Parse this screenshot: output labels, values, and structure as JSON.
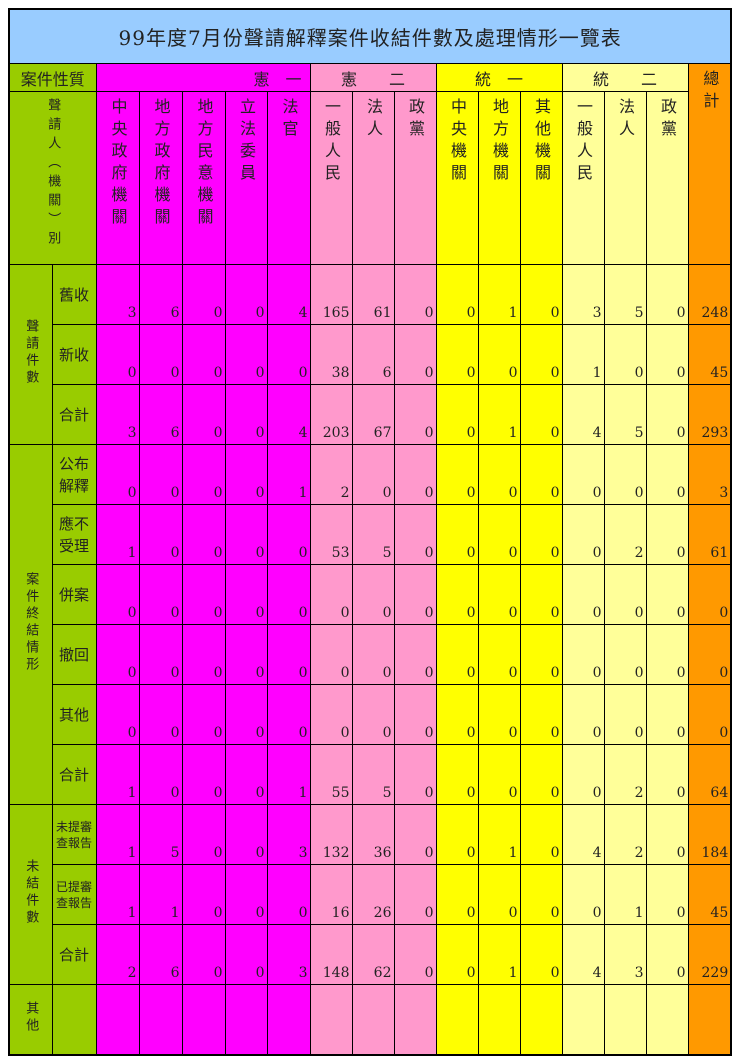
{
  "title": "99年度7月份聲請解釋案件收結件數及處理情形一覽表",
  "header": {
    "case_nature": "案件性質",
    "groups": [
      "憲　一",
      "憲　　二",
      "統　一",
      "統　　二"
    ],
    "total": "總計",
    "applicant": "聲請人（機關）別",
    "columns": [
      "中央政府機關",
      "地方政府機關",
      "地方民意機關",
      "立法委員",
      "法官",
      "一般人民",
      "法人",
      "政黨",
      "中央機關",
      "地方機關",
      "其他機關",
      "一般人民",
      "法人",
      "政黨"
    ]
  },
  "colors": {
    "title": "#99ccff",
    "label": "#99cc00",
    "xian1": "#ff00ff",
    "xian2": "#ff99cc",
    "tong1": "#ffff00",
    "tong2": "#ffff99",
    "total": "#ff9900"
  },
  "sections": [
    {
      "label": "聲請件數",
      "rows": [
        {
          "label": "舊收",
          "values": [
            3,
            6,
            0,
            0,
            4,
            165,
            61,
            0,
            0,
            1,
            0,
            3,
            5,
            0,
            248
          ]
        },
        {
          "label": "新收",
          "values": [
            0,
            0,
            0,
            0,
            0,
            38,
            6,
            0,
            0,
            0,
            0,
            1,
            0,
            0,
            45
          ]
        },
        {
          "label": "合計",
          "values": [
            3,
            6,
            0,
            0,
            4,
            203,
            67,
            0,
            0,
            1,
            0,
            4,
            5,
            0,
            293
          ]
        }
      ]
    },
    {
      "label": "案件終結情形",
      "rows": [
        {
          "label": "公布解釋",
          "values": [
            0,
            0,
            0,
            0,
            1,
            2,
            0,
            0,
            0,
            0,
            0,
            0,
            0,
            0,
            3
          ]
        },
        {
          "label": "應不受理",
          "values": [
            1,
            0,
            0,
            0,
            0,
            53,
            5,
            0,
            0,
            0,
            0,
            0,
            2,
            0,
            61
          ]
        },
        {
          "label": "併案",
          "values": [
            0,
            0,
            0,
            0,
            0,
            0,
            0,
            0,
            0,
            0,
            0,
            0,
            0,
            0,
            0
          ]
        },
        {
          "label": "撤回",
          "values": [
            0,
            0,
            0,
            0,
            0,
            0,
            0,
            0,
            0,
            0,
            0,
            0,
            0,
            0,
            0
          ]
        },
        {
          "label": "其他",
          "values": [
            0,
            0,
            0,
            0,
            0,
            0,
            0,
            0,
            0,
            0,
            0,
            0,
            0,
            0,
            0
          ]
        },
        {
          "label": "合計",
          "values": [
            1,
            0,
            0,
            0,
            1,
            55,
            5,
            0,
            0,
            0,
            0,
            0,
            2,
            0,
            64
          ]
        }
      ]
    },
    {
      "label": "未結件數",
      "rows": [
        {
          "label": "未提審查報告",
          "values": [
            1,
            5,
            0,
            0,
            3,
            132,
            36,
            0,
            0,
            1,
            0,
            4,
            2,
            0,
            184
          ]
        },
        {
          "label": "已提審查報告",
          "values": [
            1,
            1,
            0,
            0,
            0,
            16,
            26,
            0,
            0,
            0,
            0,
            0,
            1,
            0,
            45
          ]
        },
        {
          "label": "合計",
          "values": [
            2,
            6,
            0,
            0,
            3,
            148,
            62,
            0,
            0,
            1,
            0,
            4,
            3,
            0,
            229
          ]
        }
      ]
    },
    {
      "label": "其他",
      "rows": [
        {
          "label": "",
          "values": []
        }
      ]
    }
  ]
}
